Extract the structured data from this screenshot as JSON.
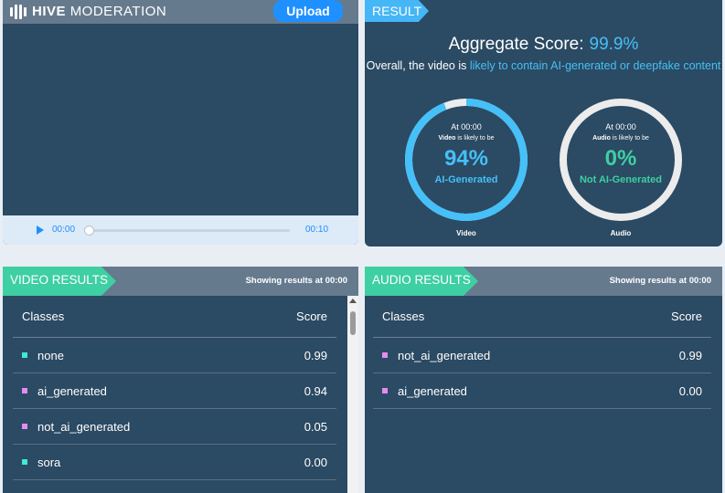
{
  "header": {
    "logo_bold": "HIVE",
    "logo_light": "MODERATION",
    "upload_label": "Upload"
  },
  "player": {
    "current_time": "00:00",
    "duration": "00:10",
    "progress": 0
  },
  "result": {
    "tab_label": "RESULT",
    "aggregate_label": "Aggregate Score:",
    "aggregate_value": "99.9%",
    "overall_prefix": "Overall, the video is",
    "overall_highlight": "likely to contain AI-generated or deepfake content",
    "video": {
      "at": "At 00:00",
      "subject": "Video",
      "likely_text": "is likely to be",
      "percent": "94%",
      "fraction": 0.94,
      "label": "AI-Generated",
      "caption": "Video",
      "color": "#45c0f8"
    },
    "audio": {
      "at": "At 00:00",
      "subject": "Audio",
      "likely_text": "is likely to be",
      "percent": "0%",
      "fraction": 0.0,
      "label": "Not AI-Generated",
      "caption": "Audio",
      "color": "#3ecfa2"
    }
  },
  "video_results": {
    "tab_label": "VIDEO RESULTS",
    "showing": "Showing results at 00:00",
    "col_classes": "Classes",
    "col_score": "Score",
    "rows": [
      {
        "name": "none",
        "score": "0.99",
        "color": "#3fe8d8"
      },
      {
        "name": "ai_generated",
        "score": "0.94",
        "color": "#e58cf0"
      },
      {
        "name": "not_ai_generated",
        "score": "0.05",
        "color": "#e58cf0"
      },
      {
        "name": "sora",
        "score": "0.00",
        "color": "#3fe8d8"
      }
    ]
  },
  "audio_results": {
    "tab_label": "AUDIO RESULTS",
    "showing": "Showing results at 00:00",
    "col_classes": "Classes",
    "col_score": "Score",
    "rows": [
      {
        "name": "not_ai_generated",
        "score": "0.99",
        "color": "#e58cf0"
      },
      {
        "name": "ai_generated",
        "score": "0.00",
        "color": "#e58cf0"
      }
    ]
  }
}
